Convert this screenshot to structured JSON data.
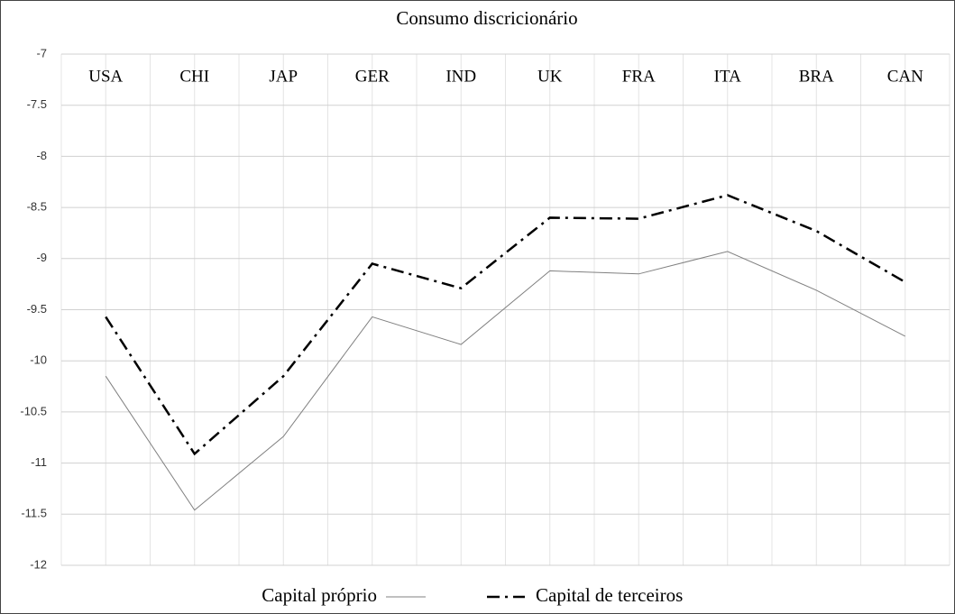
{
  "chart_data": {
    "type": "line",
    "title": "Consumo discricionário",
    "categories": [
      "USA",
      "CHI",
      "JAP",
      "GER",
      "IND",
      "UK",
      "FRA",
      "ITA",
      "BRA",
      "CAN"
    ],
    "series": [
      {
        "name": "Capital próprio",
        "color": "#808080",
        "style": "solid",
        "values": [
          -10.15,
          -11.46,
          -10.74,
          -9.57,
          -9.84,
          -9.12,
          -9.15,
          -8.93,
          -9.31,
          -9.76
        ]
      },
      {
        "name": "Capital de terceiros",
        "color": "#000000",
        "style": "dashdot",
        "values": [
          -9.57,
          -10.91,
          -10.15,
          -9.05,
          -9.29,
          -8.6,
          -8.61,
          -8.38,
          -8.73,
          -9.23
        ]
      }
    ],
    "ylim": [
      -12,
      -7
    ],
    "yticks": [
      -12,
      -11.5,
      -11,
      -10.5,
      -10,
      -9.5,
      -9,
      -8.5,
      -8,
      -7.5,
      -7
    ],
    "grid": true,
    "legend": "bottom"
  }
}
